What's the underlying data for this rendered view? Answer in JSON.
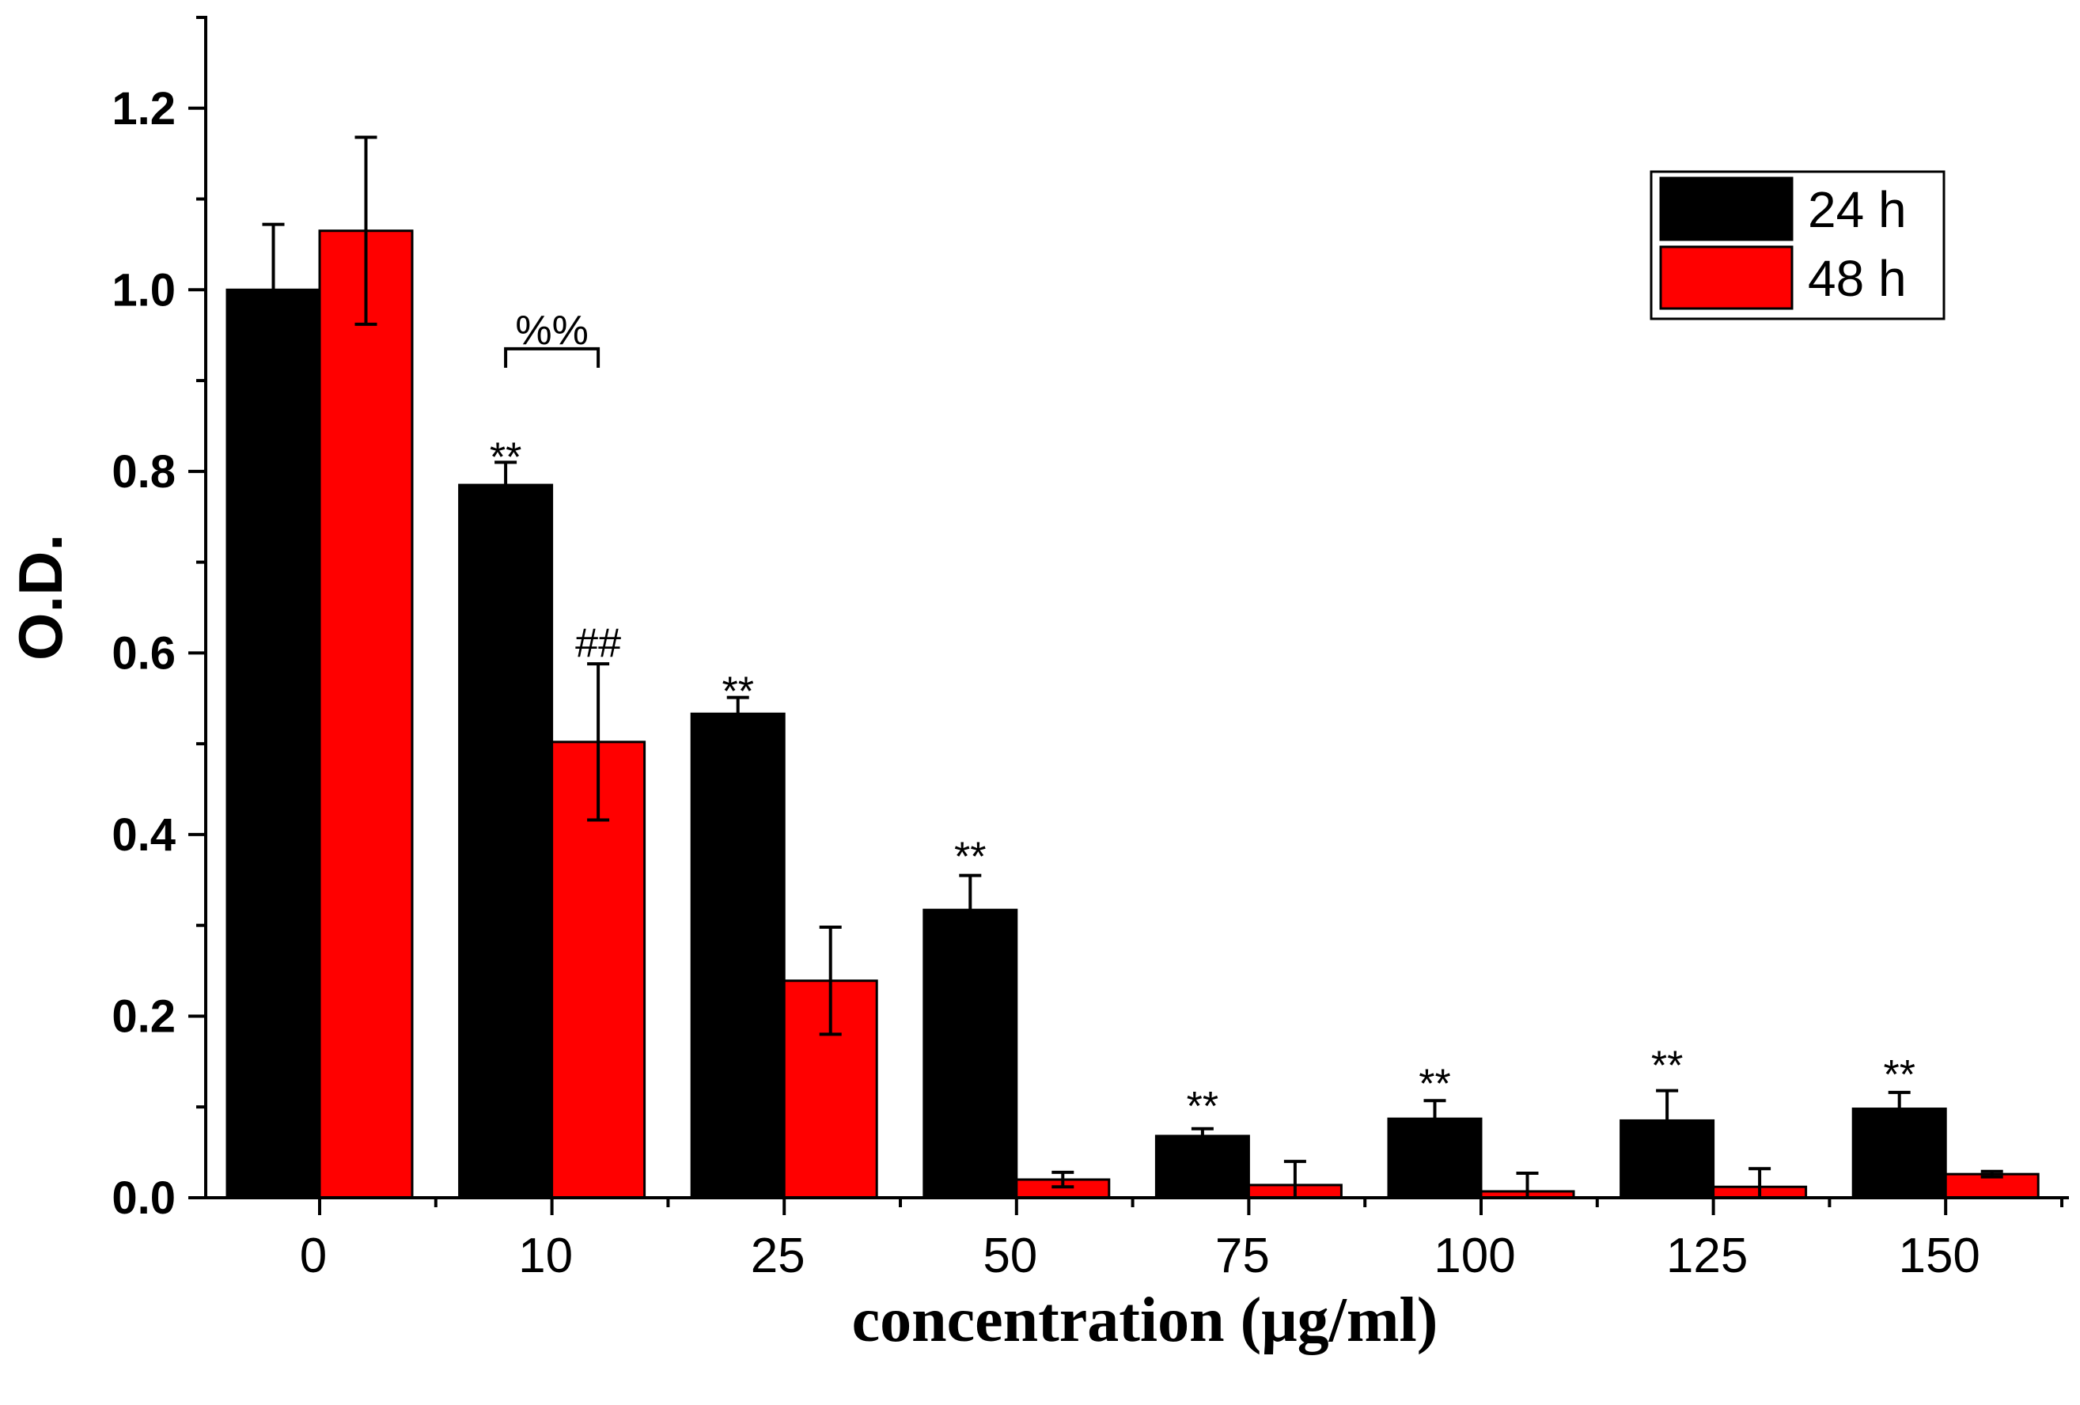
{
  "chart_data": {
    "type": "bar",
    "title": "",
    "xlabel": "concentration (μg/ml)",
    "ylabel": "O.D.",
    "ylim": [
      0,
      1.3
    ],
    "yticks": [
      "0.0",
      "0.2",
      "0.4",
      "0.6",
      "0.8",
      "1.0",
      "1.2"
    ],
    "categories": [
      "0",
      "10",
      "25",
      "50",
      "75",
      "100",
      "125",
      "150"
    ],
    "series": [
      {
        "name": "24 h",
        "color": "#000000",
        "values": [
          1.0,
          0.785,
          0.533,
          0.317,
          0.068,
          0.087,
          0.085,
          0.098
        ],
        "errors": [
          0.072,
          0.025,
          0.018,
          0.038,
          0.008,
          0.02,
          0.033,
          0.018
        ]
      },
      {
        "name": "48 h",
        "color": "#ff0000",
        "values": [
          1.065,
          0.502,
          0.239,
          0.02,
          0.014,
          0.007,
          0.012,
          0.026
        ],
        "errors": [
          0.103,
          0.086,
          0.059,
          0.008,
          0.026,
          0.02,
          0.02,
          0.003
        ]
      }
    ],
    "annotations": [
      {
        "text": "**",
        "series": 0,
        "category": 1,
        "value": 0.83
      },
      {
        "text": "##",
        "series": 1,
        "category": 1,
        "value": 0.625
      },
      {
        "text": "%%",
        "category": 1,
        "value": 0.94,
        "bracket_value": 0.935
      },
      {
        "text": "**",
        "series": 0,
        "category": 2,
        "value": 0.572
      },
      {
        "text": "**",
        "series": 0,
        "category": 3,
        "value": 0.39
      },
      {
        "text": "**",
        "series": 0,
        "category": 4,
        "value": 0.115
      },
      {
        "text": "**",
        "series": 0,
        "category": 5,
        "value": 0.14
      },
      {
        "text": "**",
        "series": 0,
        "category": 6,
        "value": 0.16
      },
      {
        "text": "**",
        "series": 0,
        "category": 7,
        "value": 0.15
      }
    ],
    "legend_position": "top-right",
    "grid": false
  }
}
